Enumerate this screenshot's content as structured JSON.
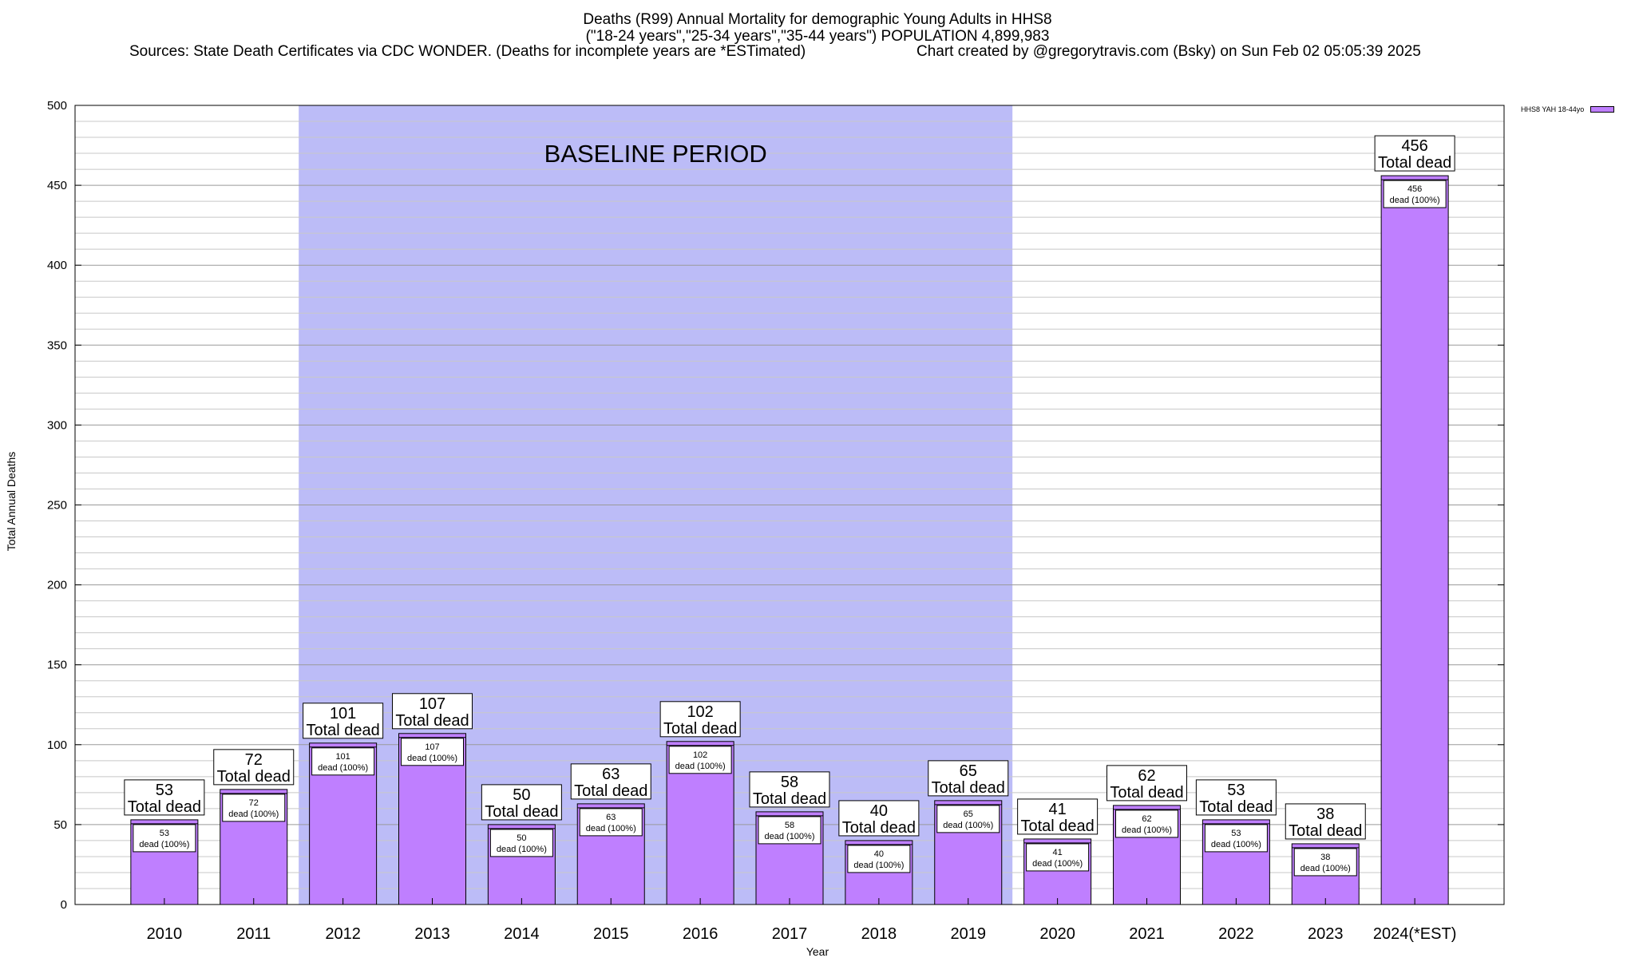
{
  "chart_data": {
    "type": "bar",
    "title": "Deaths (R99) Annual Mortality for demographic Young Adults in HHS8",
    "subtitle": "(\"18-24 years\",\"25-34 years\",\"35-44 years\") POPULATION 4,899,983",
    "sources": "Sources: State Death Certificates via CDC WONDER. (Deaths for incomplete years are *ESTimated)",
    "credit": "Chart created by @gregorytravis.com (Bsky) on Sun Feb 02 05:05:39 2025",
    "xlabel": "Year",
    "ylabel": "Total Annual Deaths",
    "ylim": [
      0,
      500
    ],
    "yticks": [
      0,
      50,
      100,
      150,
      200,
      250,
      300,
      350,
      400,
      450,
      500
    ],
    "ygrid_minor_step": 10,
    "grid": true,
    "categories": [
      "2010",
      "2011",
      "2012",
      "2013",
      "2014",
      "2015",
      "2016",
      "2017",
      "2018",
      "2019",
      "2020",
      "2021",
      "2022",
      "2023",
      "2024(*EST)"
    ],
    "series": [
      {
        "name": "HHS8 YAH 18-44yo",
        "color": "#bf7fff",
        "values": [
          53,
          72,
          101,
          107,
          50,
          63,
          102,
          58,
          40,
          65,
          41,
          62,
          53,
          38,
          456
        ]
      }
    ],
    "top_label_suffix": "Total dead",
    "inner_label_suffix": "dead (100%)",
    "baseline_period": {
      "label": "BASELINE PERIOD",
      "from": "2012",
      "to": "2019",
      "color": "#bcbcf7"
    },
    "legend_position": "top-right, outside plot"
  }
}
